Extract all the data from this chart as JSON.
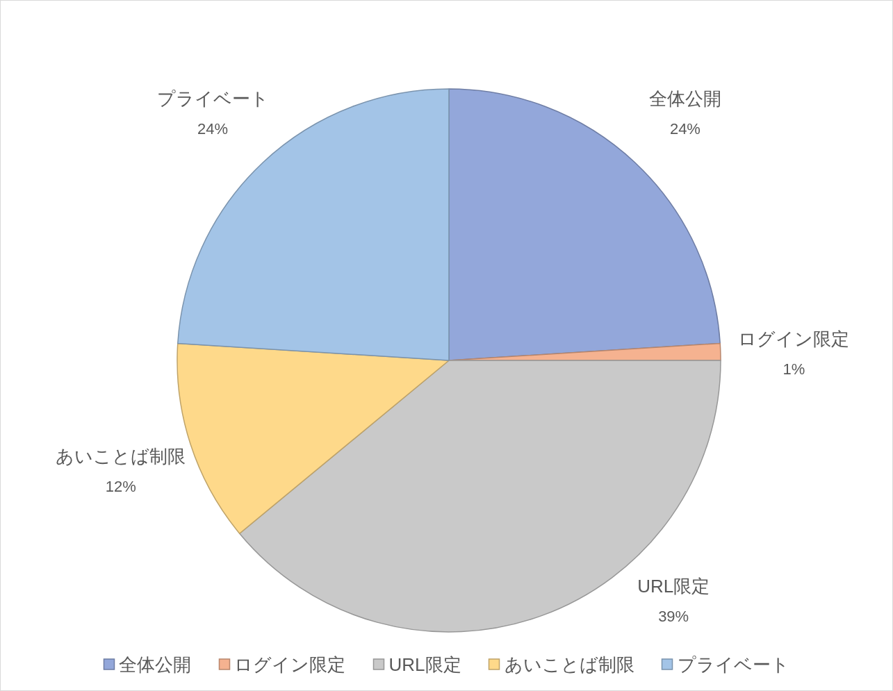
{
  "chart_data": {
    "type": "pie",
    "categories": [
      "全体公開",
      "ログイン限定",
      "URL限定",
      "あいことば制限",
      "プライベート"
    ],
    "values": [
      24,
      1,
      39,
      12,
      24
    ],
    "value_labels": [
      "24%",
      "1%",
      "39%",
      "12%",
      "24%"
    ],
    "colors": [
      "#93a7da",
      "#f5b290",
      "#c9c9c9",
      "#fed98a",
      "#a3c4e7"
    ],
    "legend": "bottom"
  }
}
